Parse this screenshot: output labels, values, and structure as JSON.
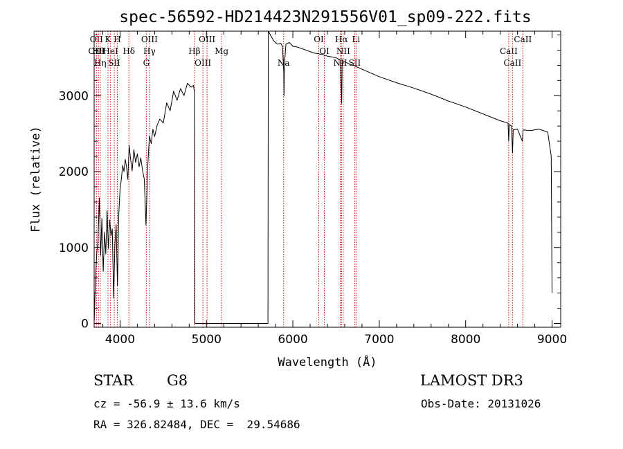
{
  "chart_data": {
    "type": "line",
    "title": "spec-56592-HD214423N291556V01_sp09-222.fits",
    "xlabel": "Wavelength (Å)",
    "ylabel": "Flux (relative)",
    "xlim": [
      3700,
      9100
    ],
    "ylim": [
      -50,
      3850
    ],
    "xticks": [
      4000,
      5000,
      6000,
      7000,
      8000,
      9000
    ],
    "yticks": [
      0,
      1000,
      2000,
      3000
    ],
    "xtick_labels": [
      "4000",
      "5000",
      "6000",
      "7000",
      "8000",
      "9000"
    ],
    "ytick_labels": [
      "0",
      "1000",
      "2000",
      "3000"
    ],
    "series": [
      {
        "name": "flux",
        "points": [
          [
            3700,
            0
          ],
          [
            3715,
            600
          ],
          [
            3730,
            900
          ],
          [
            3745,
            1100
          ],
          [
            3760,
            1650
          ],
          [
            3775,
            900
          ],
          [
            3790,
            1400
          ],
          [
            3805,
            700
          ],
          [
            3820,
            1200
          ],
          [
            3835,
            900
          ],
          [
            3850,
            1500
          ],
          [
            3865,
            1000
          ],
          [
            3880,
            1350
          ],
          [
            3895,
            1150
          ],
          [
            3910,
            1250
          ],
          [
            3925,
            350
          ],
          [
            3940,
            1050
          ],
          [
            3955,
            1300
          ],
          [
            3970,
            480
          ],
          [
            3985,
            1450
          ],
          [
            4000,
            1750
          ],
          [
            4015,
            1900
          ],
          [
            4030,
            2100
          ],
          [
            4045,
            2000
          ],
          [
            4060,
            2150
          ],
          [
            4075,
            2050
          ],
          [
            4090,
            1900
          ],
          [
            4105,
            2350
          ],
          [
            4120,
            2200
          ],
          [
            4140,
            2000
          ],
          [
            4160,
            2300
          ],
          [
            4180,
            2100
          ],
          [
            4200,
            2250
          ],
          [
            4220,
            2050
          ],
          [
            4240,
            2200
          ],
          [
            4260,
            2000
          ],
          [
            4280,
            1900
          ],
          [
            4300,
            1300
          ],
          [
            4320,
            2050
          ],
          [
            4340,
            2450
          ],
          [
            4360,
            2350
          ],
          [
            4380,
            2550
          ],
          [
            4400,
            2450
          ],
          [
            4430,
            2600
          ],
          [
            4460,
            2700
          ],
          [
            4500,
            2650
          ],
          [
            4540,
            2900
          ],
          [
            4580,
            2800
          ],
          [
            4620,
            3050
          ],
          [
            4660,
            2950
          ],
          [
            4700,
            3100
          ],
          [
            4740,
            3000
          ],
          [
            4780,
            3150
          ],
          [
            4820,
            3100
          ],
          [
            4850,
            3150
          ],
          [
            4862,
            3050
          ],
          [
            4866,
            0
          ],
          [
            4875,
            0
          ],
          [
            5700,
            0
          ],
          [
            5712,
            0
          ],
          [
            5716,
            3850
          ],
          [
            5740,
            3800
          ],
          [
            5780,
            3720
          ],
          [
            5820,
            3680
          ],
          [
            5860,
            3690
          ],
          [
            5880,
            3650
          ],
          [
            5895,
            3300
          ],
          [
            5898,
            3000
          ],
          [
            5902,
            3400
          ],
          [
            5920,
            3680
          ],
          [
            5960,
            3700
          ],
          [
            6000,
            3650
          ],
          [
            6050,
            3640
          ],
          [
            6100,
            3620
          ],
          [
            6150,
            3600
          ],
          [
            6200,
            3580
          ],
          [
            6250,
            3560
          ],
          [
            6300,
            3550
          ],
          [
            6350,
            3540
          ],
          [
            6400,
            3520
          ],
          [
            6450,
            3510
          ],
          [
            6500,
            3500
          ],
          [
            6550,
            3470
          ],
          [
            6560,
            3100
          ],
          [
            6565,
            2900
          ],
          [
            6570,
            3400
          ],
          [
            6590,
            3450
          ],
          [
            6650,
            3420
          ],
          [
            6700,
            3400
          ],
          [
            6800,
            3350
          ],
          [
            6900,
            3300
          ],
          [
            7000,
            3250
          ],
          [
            7200,
            3170
          ],
          [
            7400,
            3100
          ],
          [
            7600,
            3020
          ],
          [
            7800,
            2930
          ],
          [
            8000,
            2850
          ],
          [
            8200,
            2760
          ],
          [
            8400,
            2670
          ],
          [
            8490,
            2640
          ],
          [
            8498,
            2400
          ],
          [
            8505,
            2620
          ],
          [
            8530,
            2600
          ],
          [
            8542,
            2250
          ],
          [
            8550,
            2550
          ],
          [
            8600,
            2560
          ],
          [
            8655,
            2400
          ],
          [
            8665,
            2550
          ],
          [
            8750,
            2540
          ],
          [
            8850,
            2560
          ],
          [
            8950,
            2520
          ],
          [
            8990,
            2200
          ],
          [
            9000,
            400
          ]
        ]
      }
    ],
    "line_markers": [
      {
        "wl": 3727,
        "labels": [
          "OII",
          "OIII"
        ]
      },
      {
        "wl": 3750,
        "labels": [
          "Hθ"
        ]
      },
      {
        "wl": 3770,
        "labels": [
          "Hη"
        ]
      },
      {
        "wl": 3860,
        "labels": [
          "K"
        ]
      },
      {
        "wl": 3890,
        "labels": [
          "HeI"
        ]
      },
      {
        "wl": 3933,
        "labels": [
          "SII"
        ]
      },
      {
        "wl": 3968,
        "labels": [
          "H"
        ]
      },
      {
        "wl": 4102,
        "labels": [
          "Hδ"
        ]
      },
      {
        "wl": 4304,
        "labels": [
          "G"
        ]
      },
      {
        "wl": 4340,
        "labels": [
          "OIII",
          "Hγ"
        ]
      },
      {
        "wl": 4861,
        "labels": [
          "Hβ"
        ]
      },
      {
        "wl": 4959,
        "labels": [
          "OIII"
        ]
      },
      {
        "wl": 5007,
        "labels": [
          "OIII"
        ]
      },
      {
        "wl": 5175,
        "labels": [
          "Mg"
        ]
      },
      {
        "wl": 5893,
        "labels": [
          "Na"
        ]
      },
      {
        "wl": 6300,
        "labels": [
          "OI"
        ]
      },
      {
        "wl": 6364,
        "labels": [
          "OI"
        ]
      },
      {
        "wl": 6548,
        "labels": [
          "NII"
        ]
      },
      {
        "wl": 6563,
        "labels": [
          "Hα"
        ]
      },
      {
        "wl": 6583,
        "labels": [
          "NII"
        ]
      },
      {
        "wl": 6716,
        "labels": [
          "SII"
        ]
      },
      {
        "wl": 6731,
        "labels": [
          "Li"
        ]
      },
      {
        "wl": 8498,
        "labels": [
          "CaII"
        ]
      },
      {
        "wl": 8542,
        "labels": [
          "CaII"
        ]
      },
      {
        "wl": 8662,
        "labels": [
          "CaII"
        ]
      }
    ],
    "marker_color": "#cc0000",
    "line_color": "#000000"
  },
  "info": {
    "object_class": "STAR",
    "subclass": "G8",
    "survey": "LAMOST DR3",
    "redshift": "cz = -56.9 ± 13.6 km/s",
    "obs_date": "Obs-Date: 20131026",
    "coords": "RA = 326.82484, DEC =  29.54686"
  }
}
